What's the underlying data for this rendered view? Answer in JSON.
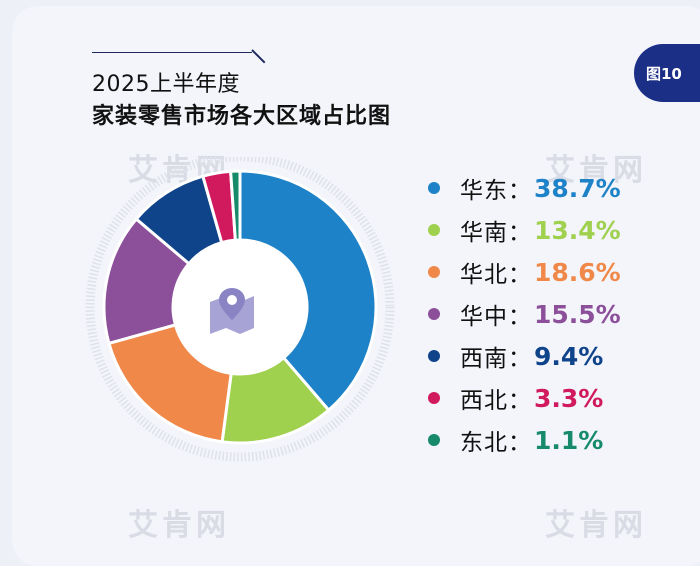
{
  "header": {
    "subtitle": "2025上半年度",
    "title": "家装零售市场各大区域占比图",
    "figure_badge": "图10"
  },
  "watermark": "艾肯网",
  "chart_data": {
    "type": "pie",
    "style": "donut",
    "title": "家装零售市场各大区域占比图",
    "subtitle": "2025上半年度",
    "legend_position": "right",
    "slices": [
      {
        "label": "华东",
        "value": 38.7,
        "display": "38.7%",
        "color": "#1e82c8"
      },
      {
        "label": "华南",
        "value": 13.4,
        "display": "13.4%",
        "color": "#9fd04e"
      },
      {
        "label": "华北",
        "value": 18.6,
        "display": "18.6%",
        "color": "#f0884a"
      },
      {
        "label": "华中",
        "value": 15.5,
        "display": "15.5%",
        "color": "#8c4f9a"
      },
      {
        "label": "西南",
        "value": 9.4,
        "display": "9.4%",
        "color": "#10448a"
      },
      {
        "label": "西北",
        "value": 3.3,
        "display": "3.3%",
        "color": "#d11a5e"
      },
      {
        "label": "东北",
        "value": 1.1,
        "display": "1.1%",
        "color": "#168a6a"
      }
    ],
    "center_icon": "map-pin-icon"
  }
}
